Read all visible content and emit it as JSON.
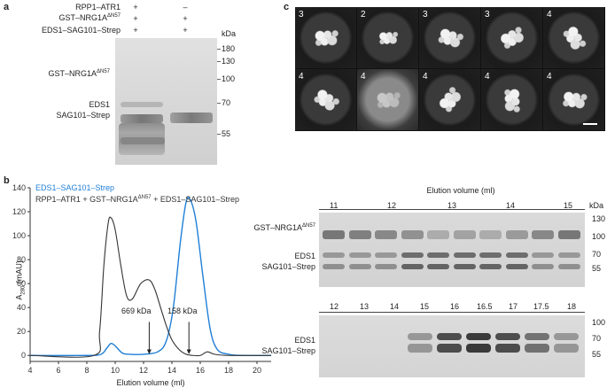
{
  "panel_a": {
    "label": "a",
    "rows": [
      {
        "name": "RPP1–ATR1",
        "lane1": "+",
        "lane2": "–"
      },
      {
        "name": "GST–NRG1A",
        "sup": "ΔN57",
        "lane1": "+",
        "lane2": "+"
      },
      {
        "name": "EDS1–SAG101–Strep",
        "lane1": "+",
        "lane2": "+"
      }
    ],
    "band_labels": {
      "gst": "GST–NRG1A",
      "gst_sup": "ΔN57",
      "eds1": "EDS1",
      "sag": "SAG101–Strep"
    },
    "kda_title": "kDa",
    "markers": [
      "180",
      "130",
      "100",
      "70",
      "55"
    ]
  },
  "panel_b": {
    "label": "b",
    "legend": [
      {
        "text": "EDS1–SAG101–Strep",
        "color": "#1f7fd6"
      },
      {
        "text_pre": "RPP1–ATR1 + GST–NRG1A",
        "sup": "ΔN57",
        "text_post": " + EDS1–SAG101–Strep",
        "color": "#333333"
      }
    ],
    "ylabel_main": "A",
    "ylabel_sub": "280",
    "ylabel_unit": " (mAU)",
    "xlabel": "Elution volume (ml)",
    "annotations": [
      {
        "text": "669 kDa"
      },
      {
        "text": "158 kDa"
      }
    ],
    "gel_title": "Elution volume (ml)",
    "gel_top": {
      "fractions": [
        "11",
        "12",
        "13",
        "14",
        "15"
      ],
      "labels": {
        "gst": "GST–NRG1A",
        "gst_sup": "ΔN57",
        "eds1": "EDS1",
        "sag": "SAG101–Strep"
      },
      "kda_title": "kDa",
      "markers": [
        "130",
        "100",
        "70",
        "55"
      ]
    },
    "gel_bottom": {
      "fractions": [
        "12",
        "13",
        "14",
        "15",
        "16",
        "16.5",
        "17",
        "17.5",
        "18"
      ],
      "labels": {
        "eds1": "EDS1",
        "sag": "SAG101–Strep"
      },
      "markers": [
        "100",
        "70",
        "55"
      ]
    }
  },
  "panel_c": {
    "label": "c",
    "tiles": [
      "3",
      "2",
      "3",
      "3",
      "4",
      "4",
      "4",
      "4",
      "4",
      "4"
    ]
  },
  "chart_data": {
    "type": "line",
    "title": "",
    "xlabel": "Elution volume (ml)",
    "ylabel": "A280 (mAU)",
    "xlim": [
      4,
      21
    ],
    "ylim": [
      -5,
      140
    ],
    "xticks": [
      4,
      6,
      8,
      10,
      12,
      14,
      16,
      18,
      20
    ],
    "yticks": [
      0,
      20,
      40,
      60,
      80,
      100,
      120,
      140
    ],
    "grid": false,
    "legend_position": "top-left",
    "series": [
      {
        "name": "EDS1–SAG101–Strep",
        "color": "#1f7fd6",
        "x": [
          4,
          8,
          9,
          9.4,
          9.7,
          10.0,
          10.5,
          11,
          12,
          13,
          13.6,
          14.1,
          14.6,
          15.0,
          15.3,
          15.7,
          16.2,
          16.7,
          17.2,
          18,
          19,
          21
        ],
        "y": [
          0,
          0,
          1,
          6,
          10,
          8,
          2,
          1,
          1,
          3,
          12,
          40,
          95,
          128,
          130,
          112,
          65,
          22,
          5,
          1,
          0,
          0
        ]
      },
      {
        "name": "RPP1–ATR1 + GST–NRG1AΔN57 + EDS1–SAG101–Strep",
        "color": "#333333",
        "x": [
          4,
          8.5,
          8.9,
          9.2,
          9.5,
          9.7,
          10.0,
          10.4,
          10.8,
          11.2,
          11.8,
          12.4,
          12.8,
          13.2,
          13.6,
          14.0,
          14.5,
          15.0,
          15.5,
          16,
          16.5,
          17,
          18,
          21
        ],
        "y": [
          0,
          0,
          20,
          75,
          110,
          115,
          105,
          75,
          50,
          47,
          60,
          63,
          55,
          40,
          25,
          13,
          5,
          1,
          0,
          0,
          3,
          1,
          0,
          0
        ]
      }
    ],
    "annotations": [
      {
        "text": "669 kDa",
        "x": 12.4
      },
      {
        "text": "158 kDa",
        "x": 15.2
      }
    ]
  }
}
